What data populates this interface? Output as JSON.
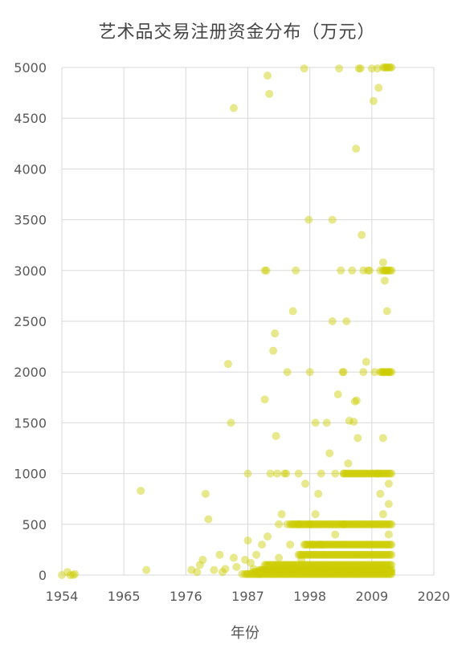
{
  "chart_data": {
    "type": "scatter",
    "title": "艺术品交易注册资金分布（万元）",
    "xlabel": "年份",
    "ylabel": "",
    "xlim": [
      1954,
      2020
    ],
    "ylim": [
      0,
      5000
    ],
    "xticks": [
      1954,
      1965,
      1976,
      1987,
      1998,
      2009,
      2020
    ],
    "yticks": [
      0,
      500,
      1000,
      1500,
      2000,
      2500,
      3000,
      3500,
      4000,
      4500,
      5000
    ],
    "grid": true,
    "legend": "none",
    "colors": {
      "point": "#cccc00",
      "grid": "#d9d9d9",
      "text": "#595959"
    },
    "series": [
      {
        "points": [
          [
            1954,
            0
          ],
          [
            1955,
            30
          ],
          [
            1955.5,
            0
          ],
          [
            1956,
            0
          ],
          [
            1956.3,
            10
          ],
          [
            1968,
            830
          ],
          [
            1969,
            50
          ],
          [
            1977,
            50
          ],
          [
            1978,
            30
          ],
          [
            1978.5,
            100
          ],
          [
            1979,
            150
          ],
          [
            1979.5,
            800
          ],
          [
            1980,
            550
          ],
          [
            1981,
            50
          ],
          [
            1982,
            200
          ],
          [
            1982.5,
            30
          ],
          [
            1983,
            60
          ],
          [
            1983.5,
            2080
          ],
          [
            1984,
            1500
          ],
          [
            1984.5,
            4600
          ],
          [
            1984.5,
            170
          ],
          [
            1985,
            80
          ],
          [
            1986,
            10
          ],
          [
            1986.5,
            150
          ],
          [
            1987,
            1000
          ],
          [
            1987,
            340
          ],
          [
            1987.5,
            120
          ],
          [
            1988,
            60
          ],
          [
            1988.5,
            200
          ],
          [
            1989,
            10
          ],
          [
            1989.5,
            300
          ],
          [
            1990,
            1730
          ],
          [
            1990,
            3000
          ],
          [
            1990.3,
            3000
          ],
          [
            1990.5,
            4920
          ],
          [
            1990.8,
            4740
          ],
          [
            1990.5,
            380
          ],
          [
            1991,
            1000
          ],
          [
            1991.5,
            2210
          ],
          [
            1991.8,
            2380
          ],
          [
            1992,
            1370
          ],
          [
            1992.2,
            1000
          ],
          [
            1992.5,
            500
          ],
          [
            1992.5,
            170
          ],
          [
            1993,
            600
          ],
          [
            1993.5,
            1000
          ],
          [
            1993.8,
            1000
          ],
          [
            1994,
            2000
          ],
          [
            1994,
            500
          ],
          [
            1994.5,
            300
          ],
          [
            1995,
            2600
          ],
          [
            1995.5,
            3000
          ],
          [
            1996,
            1000
          ],
          [
            1996,
            500
          ],
          [
            1996.5,
            150
          ],
          [
            1997,
            4990
          ],
          [
            1997.2,
            900
          ],
          [
            1997.8,
            3500
          ],
          [
            1998,
            2000
          ],
          [
            1998,
            500
          ],
          [
            1998.5,
            300
          ],
          [
            1999,
            1500
          ],
          [
            1999,
            600
          ],
          [
            1999.5,
            800
          ],
          [
            2000,
            1000
          ],
          [
            2000,
            300
          ],
          [
            2001,
            1500
          ],
          [
            2001.5,
            1200
          ],
          [
            2002,
            3500
          ],
          [
            2002,
            2500
          ],
          [
            2002.5,
            1000
          ],
          [
            2002.5,
            400
          ],
          [
            2003,
            1780
          ],
          [
            2003.2,
            4990
          ],
          [
            2003.5,
            3000
          ],
          [
            2003.8,
            2000
          ],
          [
            2004,
            2000
          ],
          [
            2004,
            1000
          ],
          [
            2004,
            500
          ],
          [
            2004.5,
            2500
          ],
          [
            2004.8,
            1100
          ],
          [
            2005,
            1520
          ],
          [
            2005.5,
            3000
          ],
          [
            2005.8,
            1510
          ],
          [
            2006,
            1710
          ],
          [
            2006.2,
            4200
          ],
          [
            2006.3,
            1720
          ],
          [
            2006.5,
            1350
          ],
          [
            2006.7,
            4990
          ],
          [
            2007,
            4990
          ],
          [
            2007.2,
            3350
          ],
          [
            2007.5,
            3000
          ],
          [
            2007.5,
            2000
          ],
          [
            2008,
            2100
          ],
          [
            2008.3,
            3000
          ],
          [
            2008.6,
            3000
          ],
          [
            2009,
            4990
          ],
          [
            2009.3,
            4670
          ],
          [
            2009.5,
            2000
          ],
          [
            2010,
            4990
          ],
          [
            2010.2,
            4800
          ],
          [
            2010.5,
            3000
          ],
          [
            2011,
            3080
          ],
          [
            2011.3,
            2900
          ],
          [
            2011.5,
            3000
          ],
          [
            2011.7,
            2600
          ],
          [
            2012,
            2000
          ],
          [
            2011,
            1350
          ],
          [
            2011,
            2000
          ],
          [
            2010,
            1000
          ],
          [
            2010.5,
            800
          ],
          [
            2011,
            600
          ],
          [
            2012,
            900
          ],
          [
            2012,
            700
          ],
          [
            2012,
            400
          ]
        ]
      }
    ],
    "bands": [
      {
        "y": 1000,
        "x_from": 2004,
        "x_to": 2012.5
      },
      {
        "y": 500,
        "x_from": 1994.5,
        "x_to": 2012.5
      },
      {
        "y": 300,
        "x_from": 1997,
        "x_to": 2012.5
      },
      {
        "y": 200,
        "x_from": 1996,
        "x_to": 2012.5
      },
      {
        "y": 100,
        "x_from": 1990,
        "x_to": 2012.5
      },
      {
        "y": 50,
        "x_from": 1989,
        "x_to": 2012.5
      },
      {
        "y": 30,
        "x_from": 1988,
        "x_to": 2012.5
      },
      {
        "y": 10,
        "x_from": 1986.5,
        "x_to": 2012.5
      },
      {
        "y": 3000,
        "x_from": 2011,
        "x_to": 2012.5
      },
      {
        "y": 2000,
        "x_from": 2010.5,
        "x_to": 2012.5
      },
      {
        "y": 5000,
        "x_from": 2011,
        "x_to": 2012.5
      }
    ]
  }
}
